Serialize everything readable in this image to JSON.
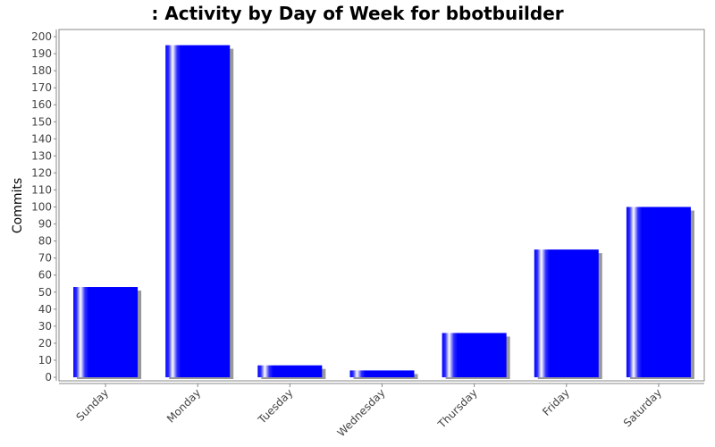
{
  "chart_data": {
    "type": "bar",
    "title": ": Activity by Day of Week for bbotbuilder",
    "xlabel": "",
    "ylabel": "Commits",
    "categories": [
      "Sunday",
      "Monday",
      "Tuesday",
      "Wednesday",
      "Thursday",
      "Friday",
      "Saturday"
    ],
    "values": [
      53,
      195,
      7,
      4,
      26,
      75,
      100
    ],
    "ylim": [
      0,
      200
    ],
    "yticks": [
      0,
      10,
      20,
      30,
      40,
      50,
      60,
      70,
      80,
      90,
      100,
      110,
      120,
      130,
      140,
      150,
      160,
      170,
      180,
      190,
      200
    ],
    "grid": false,
    "bar_color": "#0000ff",
    "shadow_color": "#999999",
    "highlight_color": "#ffffff"
  }
}
